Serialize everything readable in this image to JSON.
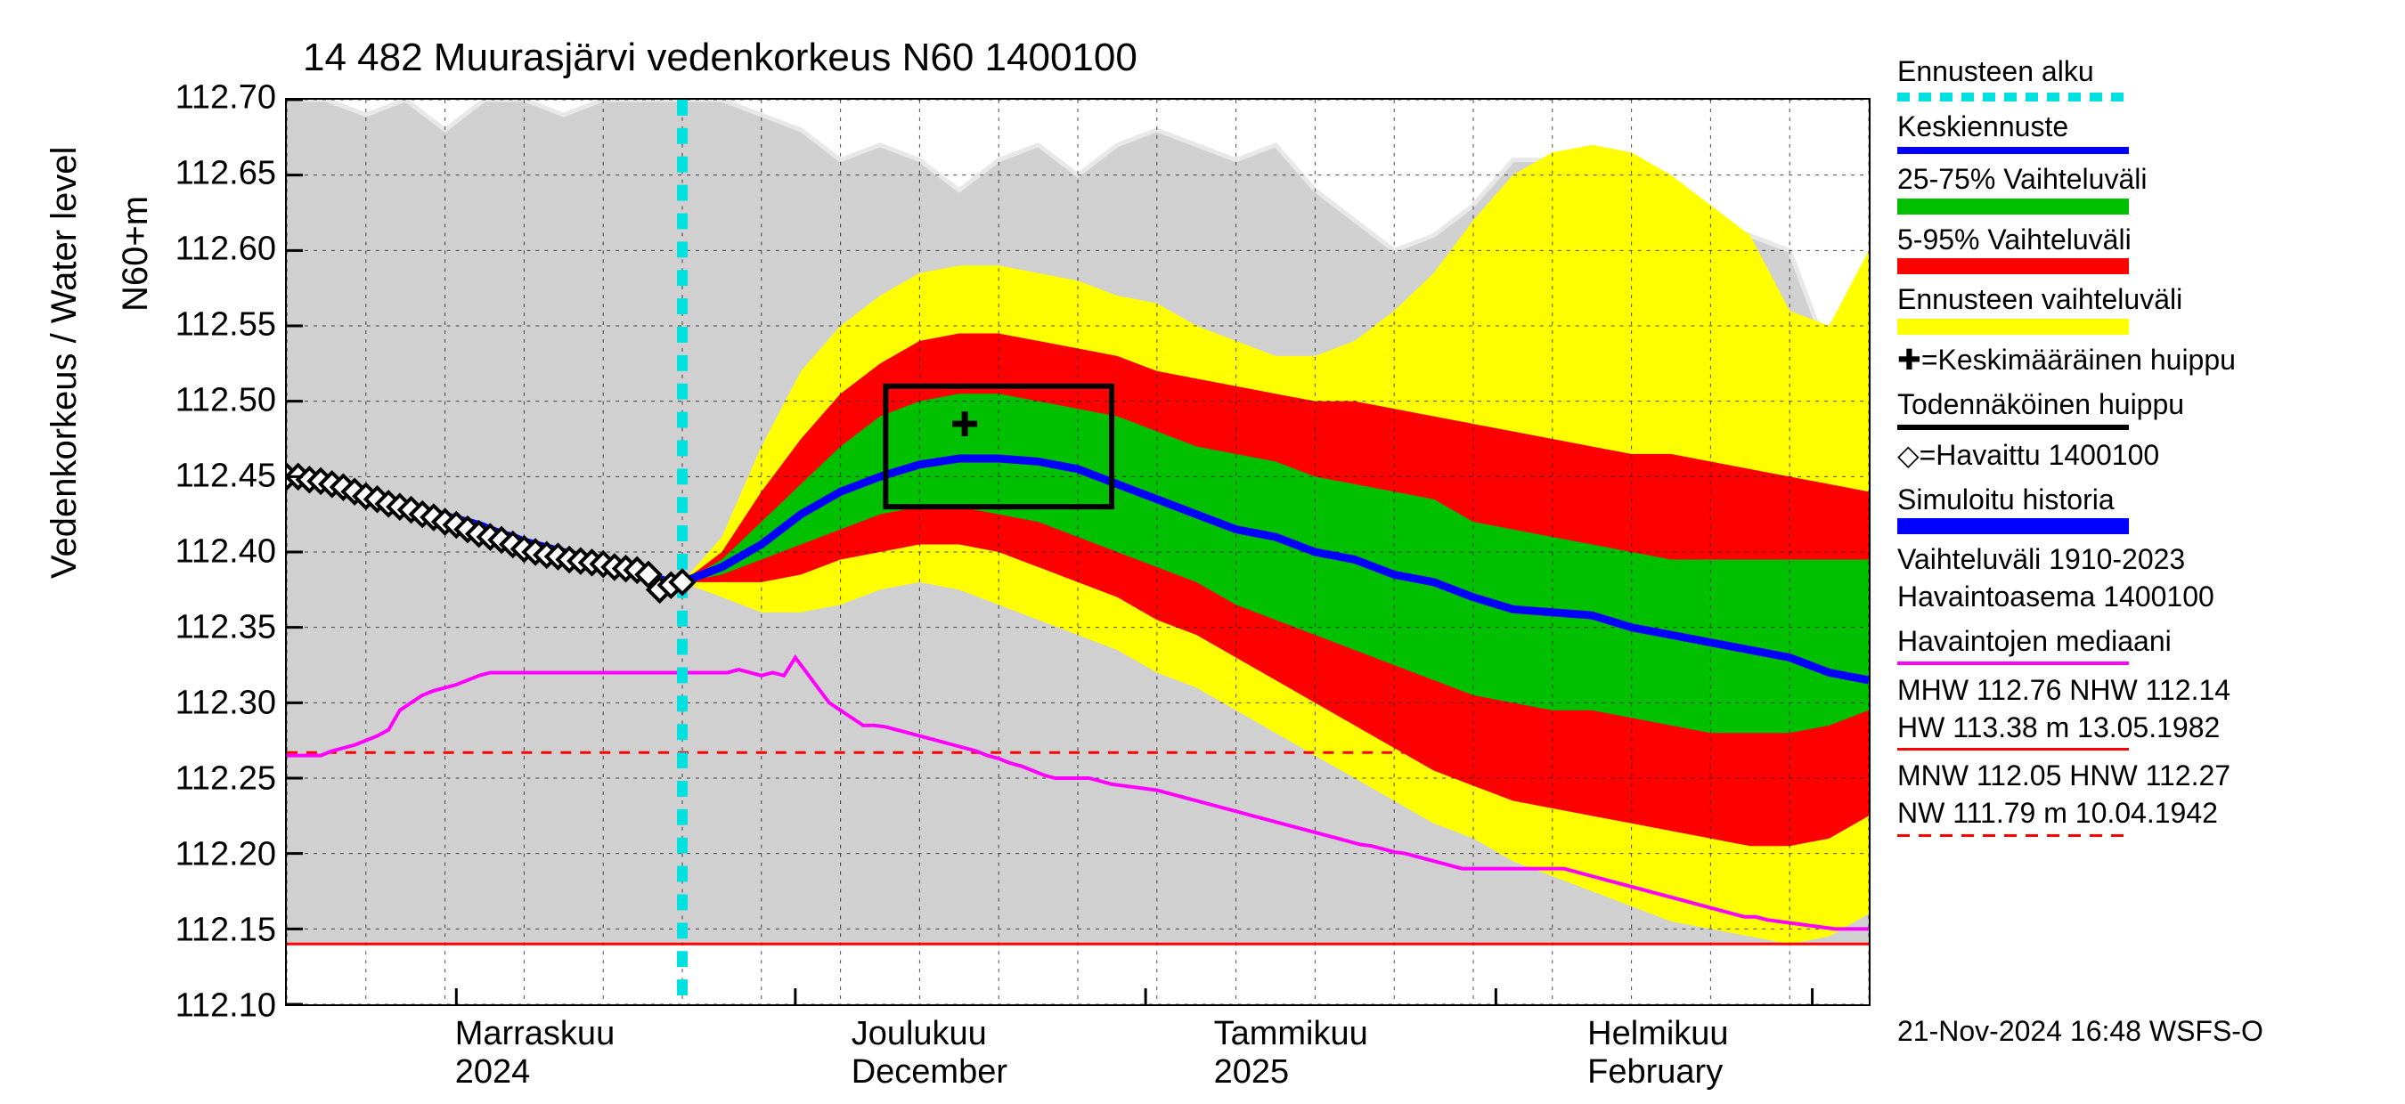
{
  "chart": {
    "type": "line-forecast-fan",
    "title": "14 482 Muurasjärvi vedenkorkeus N60 1400100",
    "yaxis_title": "Vedenkorkeus / Water level",
    "yaxis_title2": "N60+m",
    "footer_text": "21-Nov-2024 16:48 WSFS-O",
    "ylim": [
      112.1,
      112.7
    ],
    "ytick_step": 0.05,
    "yticks": [
      "112.10",
      "112.15",
      "112.20",
      "112.25",
      "112.30",
      "112.35",
      "112.40",
      "112.45",
      "112.50",
      "112.55",
      "112.60",
      "112.65",
      "112.70"
    ],
    "xrange_days": 140,
    "forecast_start_day": 35,
    "xticks": [
      {
        "pos": 15,
        "label_fi": "Marraskuu",
        "label_en": "2024"
      },
      {
        "pos": 50,
        "label_fi": "Joulukuu",
        "label_en": "December"
      },
      {
        "pos": 82,
        "label_fi": "Tammikuu",
        "label_en": "2025"
      },
      {
        "pos": 115,
        "label_fi": "Helmikuu",
        "label_en": "February"
      }
    ],
    "minor_tick_every_days": 7,
    "major_tick_days": [
      15,
      45,
      76,
      107,
      135
    ],
    "colors": {
      "background": "#ffffff",
      "historic_range": "#d0d0d0",
      "forecast_range_outer": "#ffff00",
      "forecast_range_5_95": "#ff0000",
      "forecast_range_25_75": "#00c000",
      "median_forecast": "#0000ff",
      "observed_marker": "#000000",
      "simulated_history": "#0000ff",
      "forecast_start_line": "#00e0e0",
      "median_obs": "#ff00ff",
      "hw_line": "#ff0000",
      "nw_line": "#ff0000",
      "peak_box": "#000000",
      "upper_historic_bound": "#e8e8e8"
    },
    "historic_range_poly": {
      "upper": [
        112.7,
        112.7,
        112.69,
        112.7,
        112.68,
        112.7,
        112.7,
        112.69,
        112.7,
        112.7,
        112.7,
        112.7,
        112.69,
        112.68,
        112.66,
        112.67,
        112.66,
        112.64,
        112.66,
        112.67,
        112.65,
        112.67,
        112.68,
        112.67,
        112.66,
        112.67,
        112.64,
        112.62,
        112.6,
        112.61,
        112.63,
        112.66,
        112.66,
        112.65,
        112.64,
        112.62,
        112.62,
        112.61,
        112.6,
        112.53,
        112.53
      ],
      "lower": [
        112.14,
        112.14,
        112.14,
        112.14,
        112.14,
        112.14,
        112.14,
        112.14,
        112.14,
        112.14,
        112.14,
        112.14,
        112.14,
        112.14,
        112.14,
        112.14,
        112.14,
        112.14,
        112.14,
        112.14,
        112.14,
        112.14,
        112.14,
        112.14,
        112.14,
        112.14,
        112.14,
        112.14,
        112.14,
        112.14,
        112.14,
        112.14,
        112.14,
        112.14,
        112.14,
        112.14,
        112.14,
        112.14,
        112.14,
        112.14,
        112.14
      ]
    },
    "yellow_band": {
      "upper": [
        112.38,
        112.41,
        112.47,
        112.52,
        112.55,
        112.57,
        112.585,
        112.59,
        112.59,
        112.585,
        112.58,
        112.57,
        112.565,
        112.55,
        112.54,
        112.53,
        112.53,
        112.54,
        112.56,
        112.585,
        112.62,
        112.65,
        112.665,
        112.67,
        112.665,
        112.65,
        112.63,
        112.61,
        112.56,
        112.55,
        112.6
      ],
      "lower": [
        112.38,
        112.37,
        112.36,
        112.36,
        112.365,
        112.375,
        112.38,
        112.375,
        112.365,
        112.355,
        112.345,
        112.335,
        112.32,
        112.31,
        112.295,
        112.28,
        112.265,
        112.25,
        112.235,
        112.22,
        112.21,
        112.195,
        112.185,
        112.175,
        112.165,
        112.155,
        112.15,
        112.145,
        112.14,
        112.145,
        112.16
      ]
    },
    "red_band": {
      "upper": [
        112.38,
        112.4,
        112.44,
        112.475,
        112.505,
        112.525,
        112.54,
        112.545,
        112.545,
        112.54,
        112.535,
        112.53,
        112.52,
        112.515,
        112.51,
        112.505,
        112.5,
        112.5,
        112.495,
        112.49,
        112.485,
        112.48,
        112.475,
        112.47,
        112.465,
        112.465,
        112.46,
        112.455,
        112.45,
        112.445,
        112.44
      ],
      "lower": [
        112.38,
        112.38,
        112.38,
        112.385,
        112.395,
        112.4,
        112.405,
        112.405,
        112.4,
        112.39,
        112.38,
        112.37,
        112.355,
        112.345,
        112.33,
        112.315,
        112.3,
        112.285,
        112.27,
        112.255,
        112.245,
        112.235,
        112.23,
        112.225,
        112.22,
        112.215,
        112.21,
        112.205,
        112.205,
        112.21,
        112.225
      ]
    },
    "green_band": {
      "upper": [
        112.38,
        112.395,
        112.42,
        112.445,
        112.47,
        112.49,
        112.5,
        112.505,
        112.505,
        112.5,
        112.495,
        112.49,
        112.48,
        112.47,
        112.465,
        112.46,
        112.45,
        112.445,
        112.44,
        112.435,
        112.42,
        112.415,
        112.41,
        112.405,
        112.4,
        112.395,
        112.395,
        112.395,
        112.395,
        112.395,
        112.395
      ],
      "lower": [
        112.38,
        112.385,
        112.395,
        112.405,
        112.415,
        112.425,
        112.43,
        112.43,
        112.425,
        112.42,
        112.41,
        112.4,
        112.39,
        112.38,
        112.365,
        112.355,
        112.345,
        112.335,
        112.325,
        112.315,
        112.305,
        112.3,
        112.295,
        112.295,
        112.29,
        112.285,
        112.28,
        112.28,
        112.28,
        112.285,
        112.295
      ]
    },
    "median_forecast": [
      112.38,
      112.39,
      112.405,
      112.425,
      112.44,
      112.45,
      112.458,
      112.462,
      112.462,
      112.46,
      112.455,
      112.445,
      112.435,
      112.425,
      112.415,
      112.41,
      112.4,
      112.395,
      112.385,
      112.38,
      112.37,
      112.362,
      112.36,
      112.358,
      112.35,
      112.345,
      112.34,
      112.335,
      112.33,
      112.32,
      112.315
    ],
    "observed": [
      {
        "d": 0,
        "v": 112.45
      },
      {
        "d": 1,
        "v": 112.45
      },
      {
        "d": 2,
        "v": 112.448
      },
      {
        "d": 3,
        "v": 112.447
      },
      {
        "d": 4,
        "v": 112.445
      },
      {
        "d": 5,
        "v": 112.443
      },
      {
        "d": 6,
        "v": 112.44
      },
      {
        "d": 7,
        "v": 112.437
      },
      {
        "d": 8,
        "v": 112.435
      },
      {
        "d": 9,
        "v": 112.432
      },
      {
        "d": 10,
        "v": 112.43
      },
      {
        "d": 11,
        "v": 112.428
      },
      {
        "d": 12,
        "v": 112.425
      },
      {
        "d": 13,
        "v": 112.423
      },
      {
        "d": 14,
        "v": 112.42
      },
      {
        "d": 15,
        "v": 112.418
      },
      {
        "d": 16,
        "v": 112.415
      },
      {
        "d": 17,
        "v": 112.412
      },
      {
        "d": 18,
        "v": 112.41
      },
      {
        "d": 19,
        "v": 112.408
      },
      {
        "d": 20,
        "v": 112.405
      },
      {
        "d": 21,
        "v": 112.402
      },
      {
        "d": 22,
        "v": 112.4
      },
      {
        "d": 23,
        "v": 112.398
      },
      {
        "d": 24,
        "v": 112.397
      },
      {
        "d": 25,
        "v": 112.395
      },
      {
        "d": 26,
        "v": 112.394
      },
      {
        "d": 27,
        "v": 112.393
      },
      {
        "d": 28,
        "v": 112.392
      },
      {
        "d": 29,
        "v": 112.39
      },
      {
        "d": 30,
        "v": 112.389
      },
      {
        "d": 31,
        "v": 112.388
      },
      {
        "d": 32,
        "v": 112.385
      },
      {
        "d": 33,
        "v": 112.375
      },
      {
        "d": 34,
        "v": 112.378
      },
      {
        "d": 35,
        "v": 112.38
      }
    ],
    "simulated_history": [
      112.451,
      112.45,
      112.448,
      112.446,
      112.444,
      112.442,
      112.44,
      112.438,
      112.436,
      112.434,
      112.432,
      112.43,
      112.428,
      112.426,
      112.424,
      112.422,
      112.42,
      112.418,
      112.415,
      112.412,
      112.41,
      112.407,
      112.405,
      112.403,
      112.401,
      112.399,
      112.397,
      112.395,
      112.393,
      112.391,
      112.389,
      112.387,
      112.385,
      112.382,
      112.38,
      112.38
    ],
    "median_obs_line": [
      112.265,
      112.265,
      112.265,
      112.265,
      112.268,
      112.27,
      112.272,
      112.275,
      112.278,
      112.282,
      112.295,
      112.3,
      112.305,
      112.308,
      112.31,
      112.312,
      112.315,
      112.318,
      112.32,
      112.32,
      112.32,
      112.32,
      112.32,
      112.32,
      112.32,
      112.32,
      112.32,
      112.32,
      112.32,
      112.32,
      112.32,
      112.32,
      112.32,
      112.32,
      112.32,
      112.32,
      112.32,
      112.32,
      112.32,
      112.32,
      112.322,
      112.32,
      112.318,
      112.32,
      112.318,
      112.33,
      112.32,
      112.31,
      112.3,
      112.295,
      112.29,
      112.285,
      112.285,
      112.284,
      112.282,
      112.28,
      112.278,
      112.276,
      112.274,
      112.272,
      112.27,
      112.268,
      112.265,
      112.263,
      112.26,
      112.258,
      112.255,
      112.252,
      112.25,
      112.25,
      112.25,
      112.25,
      112.248,
      112.246,
      112.245,
      112.244,
      112.243,
      112.242,
      112.24,
      112.238,
      112.236,
      112.234,
      112.232,
      112.23,
      112.228,
      112.226,
      112.224,
      112.222,
      112.22,
      112.218,
      112.216,
      112.214,
      112.212,
      112.21,
      112.208,
      112.206,
      112.205,
      112.203,
      112.201,
      112.2,
      112.198,
      112.196,
      112.194,
      112.192,
      112.19,
      112.19,
      112.19,
      112.19,
      112.19,
      112.19,
      112.19,
      112.19,
      112.19,
      112.19,
      112.188,
      112.186,
      112.184,
      112.182,
      112.18,
      112.178,
      112.176,
      112.174,
      112.172,
      112.17,
      112.168,
      112.166,
      112.164,
      112.162,
      112.16,
      112.158,
      112.158,
      112.156,
      112.155,
      112.154,
      112.153,
      112.152,
      112.151,
      112.15,
      112.15,
      112.15,
      112.15
    ],
    "hw_line_value": 112.76,
    "nhw_dashed_value": 112.267,
    "nw_line_value": 111.79,
    "mnw_solid_value": 112.14,
    "peak_box": {
      "d_start": 53,
      "d_end": 73,
      "v_low": 112.43,
      "v_high": 112.51
    },
    "peak_marker": {
      "d": 60,
      "v": 112.485
    }
  },
  "legend": {
    "items": [
      {
        "type": "dashed",
        "color": "#00e0e0",
        "label": "Ennusteen alku",
        "thick": 10
      },
      {
        "type": "line",
        "color": "#0000ff",
        "label": "Keskiennuste",
        "thick": 8
      },
      {
        "type": "block",
        "color": "#00c000",
        "label": "25-75% Vaihteluväli"
      },
      {
        "type": "block",
        "color": "#ff0000",
        "label": "5-95% Vaihteluväli"
      },
      {
        "type": "block",
        "color": "#ffff00",
        "label": "Ennusteen vaihteluväli"
      },
      {
        "type": "text",
        "label": "✚=Keskimääräinen huippu"
      },
      {
        "type": "line",
        "color": "#000000",
        "label": "Todennäköinen huippu",
        "thick": 6
      },
      {
        "type": "text",
        "label": "◇=Havaittu 1400100"
      },
      {
        "type": "block",
        "color": "#0000ff",
        "label": "Simuloitu historia"
      },
      {
        "type": "text2",
        "label": "Vaihteluväli 1910-2023",
        "label2": " Havaintoasema 1400100"
      },
      {
        "type": "line",
        "color": "#ff00ff",
        "label": "Havaintojen mediaani",
        "thick": 4
      },
      {
        "type": "redline",
        "label": "MHW 112.76 NHW 112.14",
        "label2": "HW 113.38 m 13.05.1982"
      },
      {
        "type": "reddash",
        "label": "MNW 112.05 HNW 112.27",
        "label2": "NW 111.79 m 10.04.1942"
      }
    ]
  }
}
